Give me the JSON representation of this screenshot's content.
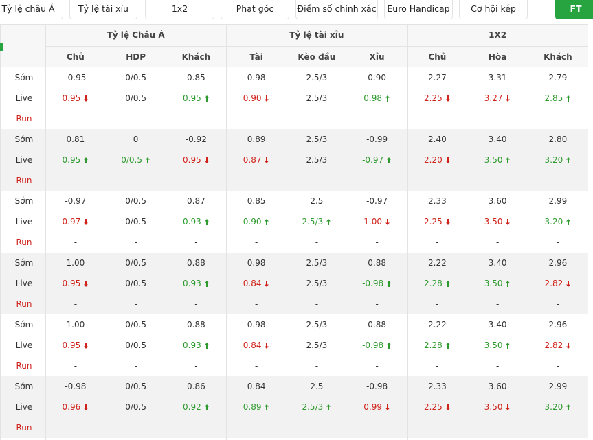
{
  "tabs": [
    "Tỷ lệ châu Á",
    "Tỷ lệ tài xỉu",
    "1x2",
    "Phạt góc",
    "Điểm số chính xác",
    "Euro Handicap",
    "Cơ hội kép"
  ],
  "active_tab": "FT",
  "table": {
    "groups": [
      "Tỷ lệ Châu Á",
      "Tỷ lệ tài xỉu",
      "1X2"
    ],
    "columns": [
      "Chủ",
      "HDP",
      "Khách",
      "Tài",
      "Kèo đầu",
      "Xỉu",
      "Chủ",
      "Hòa",
      "Khách"
    ],
    "blocks": [
      {
        "rows": [
          {
            "label": "Sớm",
            "cells": [
              "-0.95",
              "0/0.5",
              "0.85",
              "0.98",
              "2.5/3",
              "0.90",
              "2.27",
              "3.31",
              "2.79"
            ]
          },
          {
            "label": "Live",
            "cells": [
              {
                "text": "0.95",
                "dir": "down"
              },
              "0/0.5",
              {
                "text": "0.95",
                "dir": "up"
              },
              {
                "text": "0.90",
                "dir": "down"
              },
              "2.5/3",
              {
                "text": "0.98",
                "dir": "up"
              },
              {
                "text": "2.25",
                "dir": "down"
              },
              {
                "text": "3.27",
                "dir": "down"
              },
              {
                "text": "2.85",
                "dir": "up"
              }
            ]
          },
          {
            "label": "Run",
            "cells": [
              "-",
              "-",
              "-",
              "-",
              "-",
              "-",
              "-",
              "-",
              "-"
            ]
          }
        ]
      },
      {
        "rows": [
          {
            "label": "Sớm",
            "cells": [
              "0.81",
              "0",
              "-0.92",
              "0.89",
              "2.5/3",
              "-0.99",
              "2.40",
              "3.40",
              "2.80"
            ]
          },
          {
            "label": "Live",
            "cells": [
              {
                "text": "0.95",
                "dir": "up"
              },
              {
                "text": "0/0.5",
                "dir": "up"
              },
              {
                "text": "0.95",
                "dir": "down"
              },
              {
                "text": "0.87",
                "dir": "down"
              },
              "2.5/3",
              {
                "text": "-0.97",
                "dir": "up"
              },
              {
                "text": "2.20",
                "dir": "down"
              },
              {
                "text": "3.50",
                "dir": "up"
              },
              {
                "text": "3.20",
                "dir": "up"
              }
            ]
          },
          {
            "label": "Run",
            "cells": [
              "-",
              "-",
              "-",
              "-",
              "-",
              "-",
              "-",
              "-",
              "-"
            ]
          }
        ]
      },
      {
        "rows": [
          {
            "label": "Sớm",
            "cells": [
              "-0.97",
              "0/0.5",
              "0.87",
              "0.85",
              "2.5",
              "-0.97",
              "2.33",
              "3.60",
              "2.99"
            ]
          },
          {
            "label": "Live",
            "cells": [
              {
                "text": "0.97",
                "dir": "down"
              },
              "0/0.5",
              {
                "text": "0.93",
                "dir": "up"
              },
              {
                "text": "0.90",
                "dir": "up"
              },
              {
                "text": "2.5/3",
                "dir": "up"
              },
              {
                "text": "1.00",
                "dir": "down"
              },
              {
                "text": "2.25",
                "dir": "down"
              },
              {
                "text": "3.50",
                "dir": "down"
              },
              {
                "text": "3.20",
                "dir": "up"
              }
            ]
          },
          {
            "label": "Run",
            "cells": [
              "-",
              "-",
              "-",
              "-",
              "-",
              "-",
              "-",
              "-",
              "-"
            ]
          }
        ]
      },
      {
        "rows": [
          {
            "label": "Sớm",
            "cells": [
              "1.00",
              "0/0.5",
              "0.88",
              "0.98",
              "2.5/3",
              "0.88",
              "2.22",
              "3.40",
              "2.96"
            ]
          },
          {
            "label": "Live",
            "cells": [
              {
                "text": "0.95",
                "dir": "down"
              },
              "0/0.5",
              {
                "text": "0.93",
                "dir": "up"
              },
              {
                "text": "0.84",
                "dir": "down"
              },
              "2.5/3",
              {
                "text": "-0.98",
                "dir": "up"
              },
              {
                "text": "2.28",
                "dir": "up"
              },
              {
                "text": "3.50",
                "dir": "up"
              },
              {
                "text": "2.82",
                "dir": "down"
              }
            ]
          },
          {
            "label": "Run",
            "cells": [
              "-",
              "-",
              "-",
              "-",
              "-",
              "-",
              "-",
              "-",
              "-"
            ]
          }
        ]
      },
      {
        "rows": [
          {
            "label": "Sớm",
            "cells": [
              "1.00",
              "0/0.5",
              "0.88",
              "0.98",
              "2.5/3",
              "0.88",
              "2.22",
              "3.40",
              "2.96"
            ]
          },
          {
            "label": "Live",
            "cells": [
              {
                "text": "0.95",
                "dir": "down"
              },
              "0/0.5",
              {
                "text": "0.93",
                "dir": "up"
              },
              {
                "text": "0.84",
                "dir": "down"
              },
              "2.5/3",
              {
                "text": "-0.98",
                "dir": "up"
              },
              {
                "text": "2.28",
                "dir": "up"
              },
              {
                "text": "3.50",
                "dir": "up"
              },
              {
                "text": "2.82",
                "dir": "down"
              }
            ]
          },
          {
            "label": "Run",
            "cells": [
              "-",
              "-",
              "-",
              "-",
              "-",
              "-",
              "-",
              "-",
              "-"
            ]
          }
        ]
      },
      {
        "rows": [
          {
            "label": "Sớm",
            "cells": [
              "-0.98",
              "0/0.5",
              "0.86",
              "0.84",
              "2.5",
              "-0.98",
              "2.33",
              "3.60",
              "2.99"
            ]
          },
          {
            "label": "Live",
            "cells": [
              {
                "text": "0.96",
                "dir": "down"
              },
              "0/0.5",
              {
                "text": "0.92",
                "dir": "up"
              },
              {
                "text": "0.89",
                "dir": "up"
              },
              {
                "text": "2.5/3",
                "dir": "up"
              },
              {
                "text": "0.99",
                "dir": "down"
              },
              {
                "text": "2.25",
                "dir": "down"
              },
              {
                "text": "3.50",
                "dir": "down"
              },
              {
                "text": "3.20",
                "dir": "up"
              }
            ]
          },
          {
            "label": "Run",
            "cells": [
              "-",
              "-",
              "-",
              "-",
              "-",
              "-",
              "-",
              "-",
              "-"
            ]
          }
        ]
      }
    ]
  }
}
